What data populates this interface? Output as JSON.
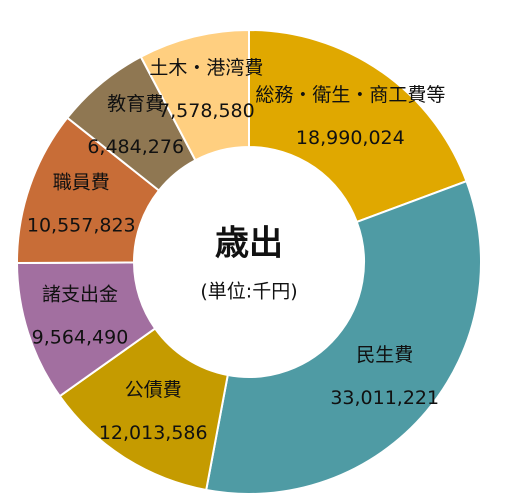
{
  "chart_data": {
    "type": "pie",
    "donut": true,
    "title": "歳出",
    "subtitle": "(単位:千円)",
    "categories": [
      "総務・衛生・商工費等",
      "民生費",
      "公債費",
      "諸支出金",
      "職員費",
      "教育費",
      "土木・港湾費"
    ],
    "values": [
      18990024,
      33011221,
      12013586,
      9564490,
      10557823,
      6484276,
      7578580
    ],
    "value_labels": [
      "18,990,024",
      "33,011,221",
      "12,013,586",
      "9,564,490",
      "10,557,823",
      "6,484,276",
      "7,578,580"
    ],
    "colors": [
      "#e0a800",
      "#4f9ba4",
      "#c59b00",
      "#a26fa0",
      "#c86d37",
      "#8f7752",
      "#ffcf80"
    ]
  }
}
